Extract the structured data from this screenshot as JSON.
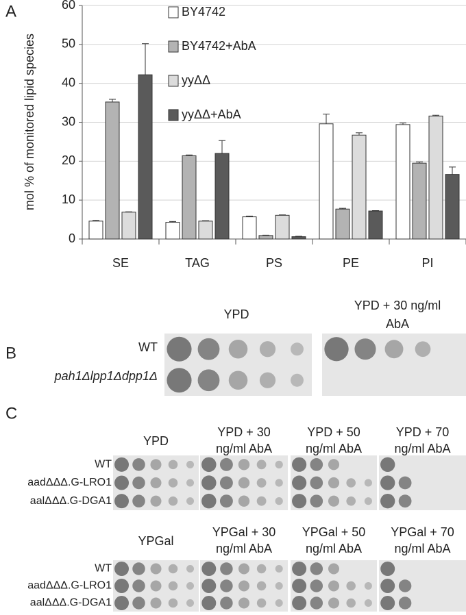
{
  "chart_data": {
    "type": "bar",
    "panel_label": "A",
    "y_label": "mol % of monitored lipid species",
    "categories": [
      "SE",
      "TAG",
      "PS",
      "PE",
      "PI"
    ],
    "series": [
      {
        "name": "BY4742",
        "color": "#ffffff",
        "values": [
          4.6,
          4.3,
          5.7,
          29.6,
          29.4
        ],
        "errors": [
          0.2,
          0.2,
          0.2,
          2.5,
          0.4
        ]
      },
      {
        "name": "BY4742+AbA",
        "color": "#b3b3b3",
        "values": [
          35.2,
          21.4,
          0.9,
          7.7,
          19.5
        ],
        "errors": [
          0.7,
          0.2,
          0.1,
          0.2,
          0.3
        ]
      },
      {
        "name": "yyΔΔ",
        "color": "#dcdcdc",
        "values": [
          6.9,
          4.6,
          6.1,
          26.7,
          31.6
        ],
        "errors": [
          0.1,
          0.1,
          0.1,
          0.6,
          0.2
        ]
      },
      {
        "name": "yyΔΔ+AbA",
        "color": "#5a5a5a",
        "values": [
          42.2,
          22.0,
          0.6,
          7.2,
          16.6
        ],
        "errors": [
          8.0,
          3.3,
          0.1,
          0.1,
          1.9
        ]
      }
    ],
    "ylim": [
      0,
      60
    ],
    "yticks": [
      0,
      10,
      20,
      30,
      40,
      50,
      60
    ],
    "grid": true
  },
  "panel_b": {
    "label": "B",
    "conditions": [
      [
        "YPD"
      ],
      [
        "YPD + 30 ng/ml",
        "AbA"
      ]
    ],
    "rows": [
      "WT",
      "pah1Δlpp1Δdpp1Δ"
    ]
  },
  "panel_c": {
    "label": "C",
    "blocks": [
      {
        "conditions": [
          [
            "YPD"
          ],
          [
            "YPD + 30",
            "ng/ml AbA"
          ],
          [
            "YPD + 50",
            "ng/ml AbA"
          ],
          [
            "YPD + 70",
            "ng/ml AbA"
          ]
        ],
        "rows": [
          "WT",
          "aadΔΔΔ.G-LRO1",
          "aalΔΔΔ.G-DGA1"
        ]
      },
      {
        "conditions": [
          [
            "YPGal"
          ],
          [
            "YPGal + 30",
            "ng/ml AbA"
          ],
          [
            "YPGal + 50",
            "ng/ml AbA"
          ],
          [
            "YPGal + 70",
            "ng/ml AbA"
          ]
        ],
        "rows": [
          "WT",
          "aadΔΔΔ.G-LRO1",
          "aalΔΔΔ.G-DGA1"
        ]
      }
    ]
  }
}
